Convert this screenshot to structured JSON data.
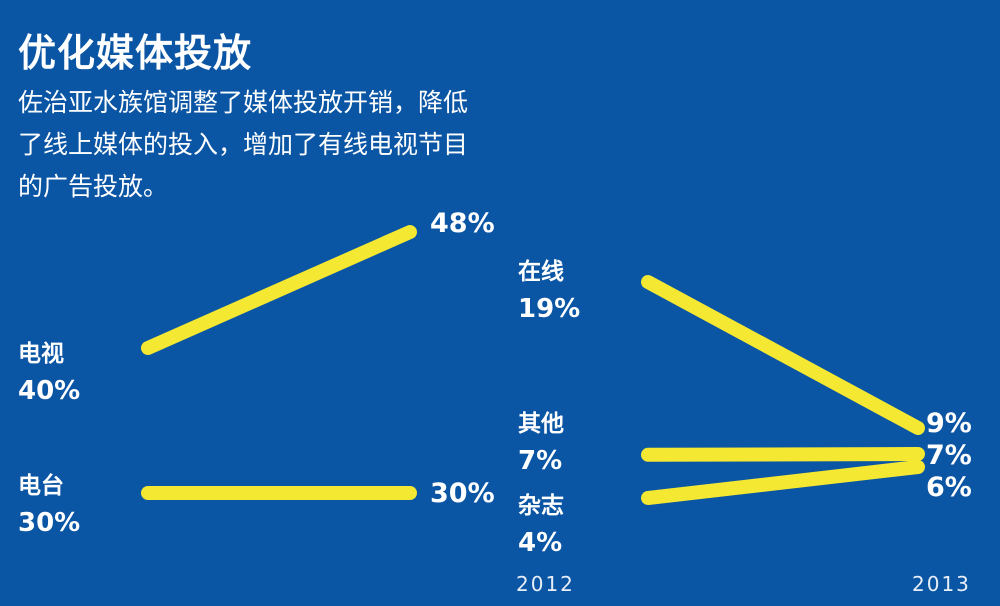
{
  "title": "优化媒体投放",
  "subtitle": "佐治亚水族馆调整了媒体投放开销，降低了线上媒体的投入，增加了有线电视节目的广告投放。",
  "line_color": "#f4e832",
  "chart_data": [
    {
      "type": "line",
      "x": [
        "2012",
        "2013"
      ],
      "series": [
        {
          "name": "电视",
          "values": [
            40,
            48
          ]
        },
        {
          "name": "电台",
          "values": [
            30,
            30
          ]
        }
      ],
      "value_labels": {
        "电视": [
          "40%",
          "48%"
        ],
        "电台": [
          "30%",
          "30%"
        ]
      }
    },
    {
      "type": "line",
      "x": [
        "2012",
        "2013"
      ],
      "x_labels": [
        "2012",
        "2013"
      ],
      "series": [
        {
          "name": "在线",
          "values": [
            19,
            9
          ]
        },
        {
          "name": "其他",
          "values": [
            7,
            7
          ]
        },
        {
          "name": "杂志",
          "values": [
            4,
            6
          ]
        }
      ],
      "value_labels": {
        "在线": [
          "19%",
          "9%"
        ],
        "其他": [
          "7%",
          "7%"
        ],
        "杂志": [
          "4%",
          "6%"
        ]
      }
    }
  ]
}
